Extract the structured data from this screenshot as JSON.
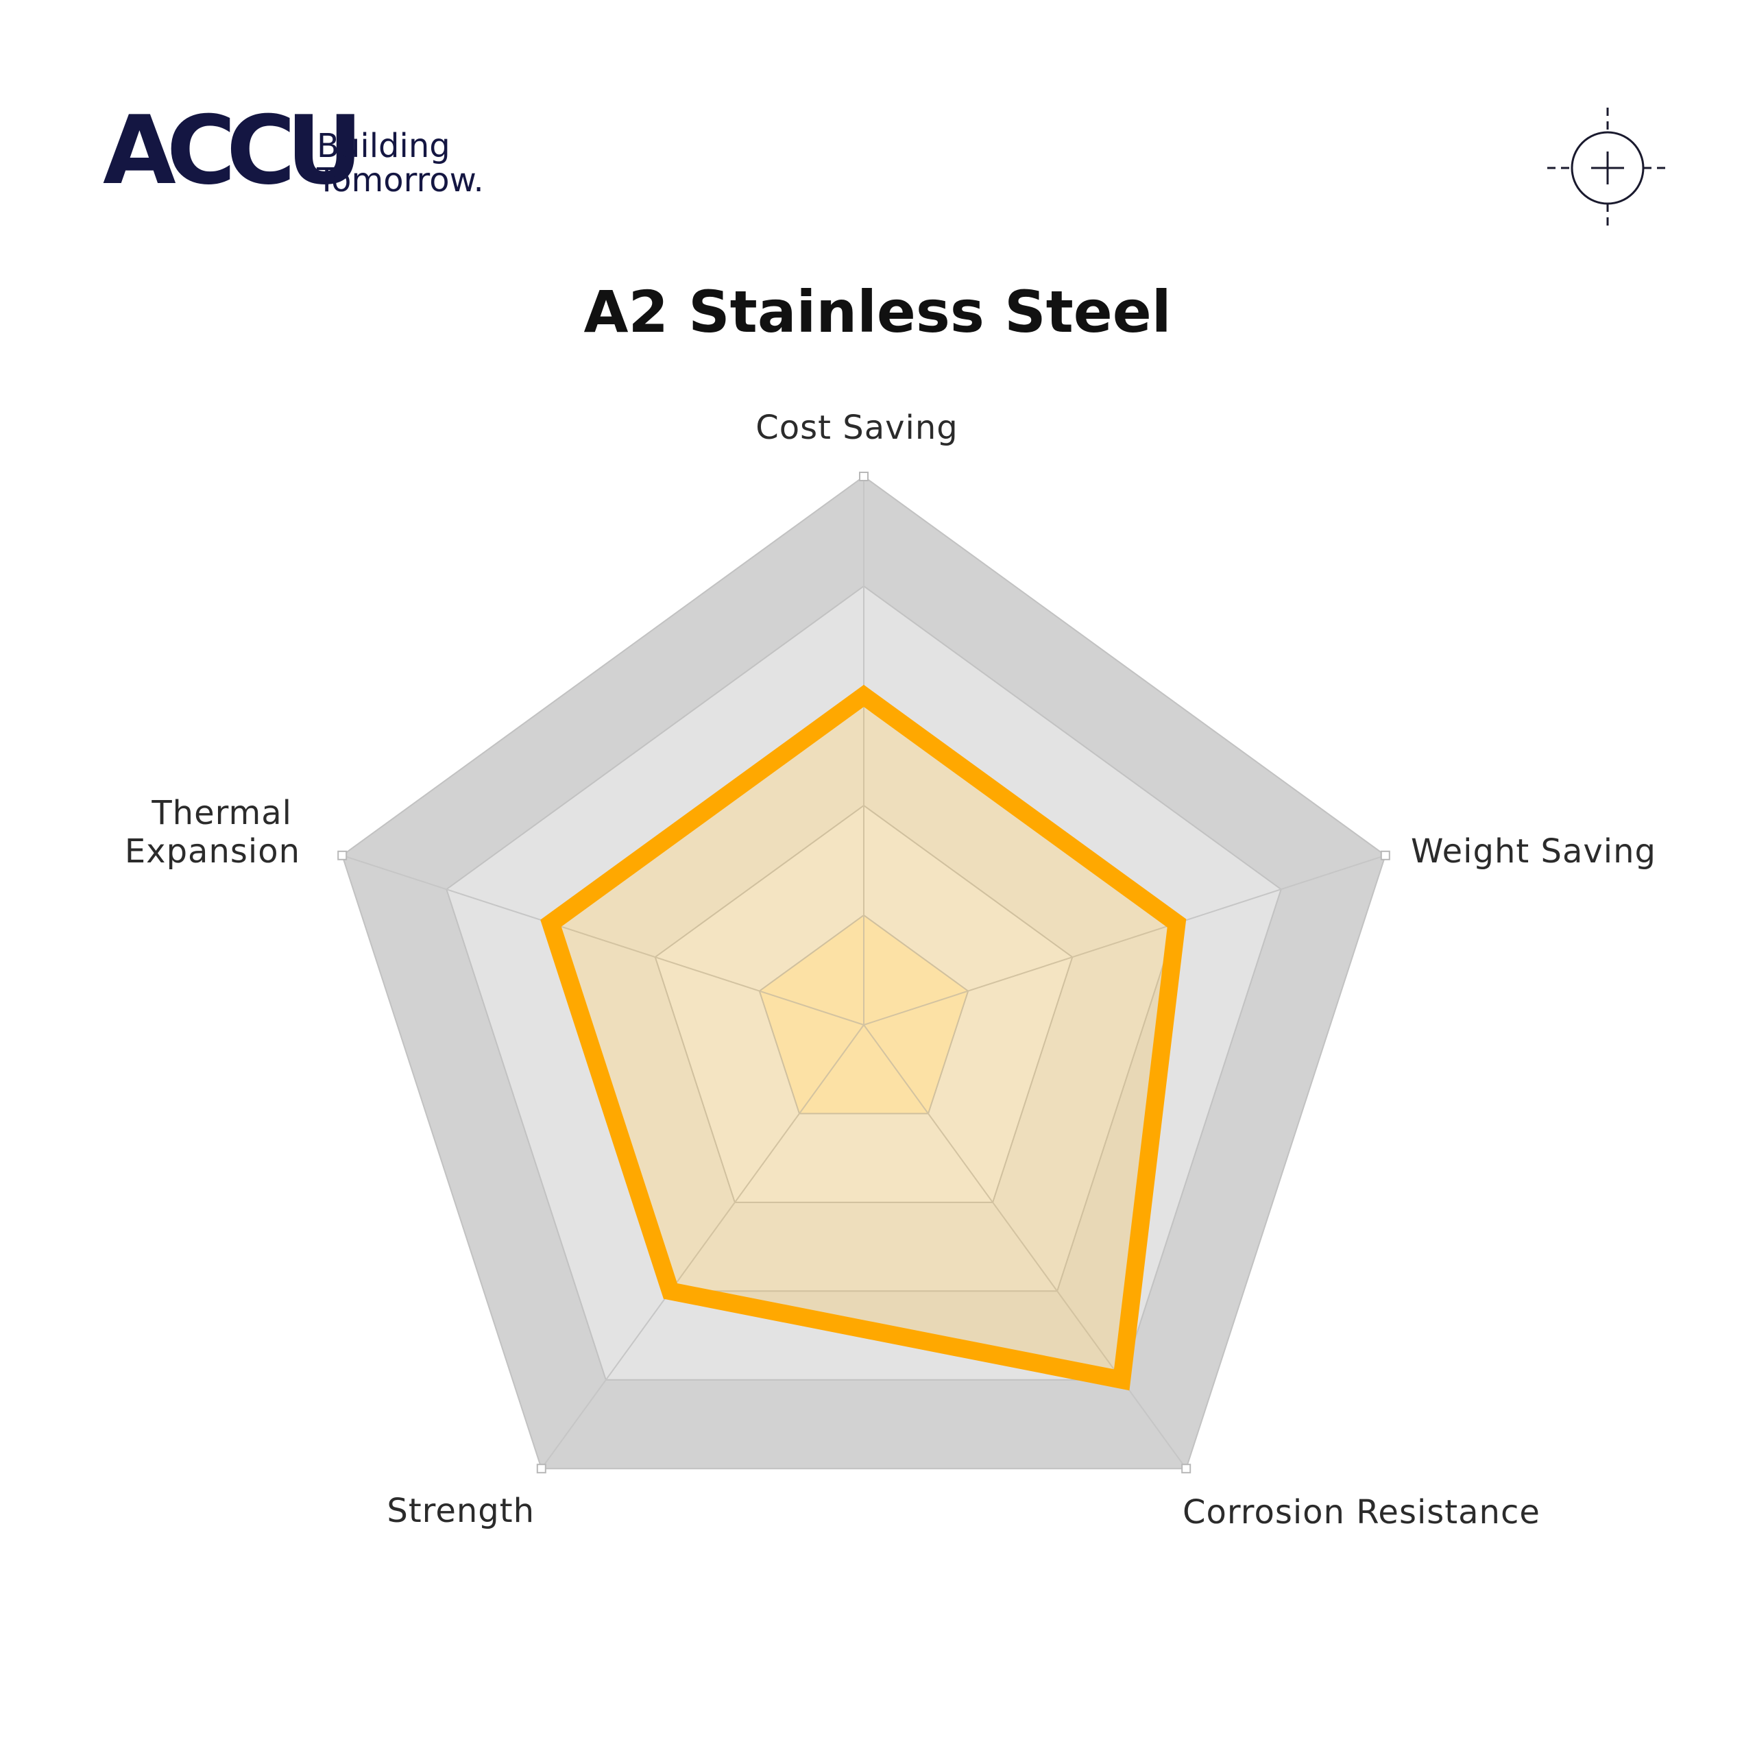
{
  "brand": {
    "name": "ACCU",
    "tagline_line1": "Building",
    "tagline_line2": "Tomorrow."
  },
  "icons": {
    "corner": "crosshair-icon"
  },
  "colors": {
    "brand": "#141642",
    "series": "#ffa800",
    "series_fill": "#f5b940",
    "ring_outer": "#d2d2d2",
    "ring_inner": "#e3e3e3",
    "center_fill": "#fff0cc"
  },
  "chart_data": {
    "type": "radar",
    "title": "A2 Stainless Steel",
    "axes": [
      "Cost Saving",
      "Weight Saving",
      "Corrosion Resistance",
      "Strength",
      "Thermal Expansion"
    ],
    "axis_label_lines": [
      [
        "Cost Saving"
      ],
      [
        "Weight Saving"
      ],
      [
        "Corrosion Resistance"
      ],
      [
        "Strength"
      ],
      [
        "Thermal Expansion"
      ]
    ],
    "rlim": [
      0,
      5
    ],
    "levels": 5,
    "series": [
      {
        "values": [
          3,
          3,
          4,
          3,
          3
        ]
      }
    ],
    "grid": true,
    "legend": "none"
  }
}
